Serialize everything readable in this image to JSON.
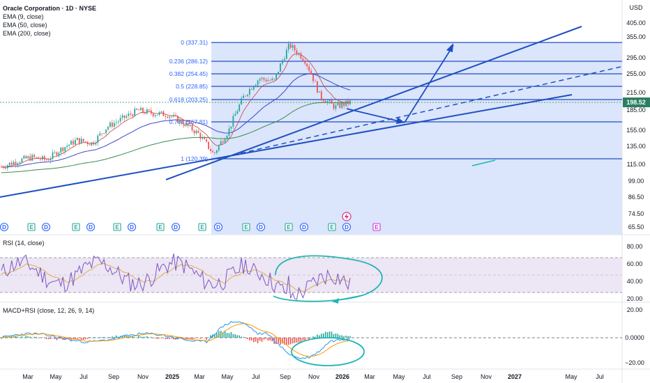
{
  "header": {
    "symbol_title": "Oracle Corporation · 1D · NYSE",
    "indicators": [
      "EMA (9, close)",
      "EMA (50, close)",
      "EMA (200, close)"
    ],
    "currency": "USD"
  },
  "price_axis": {
    "ticks": [
      "405.00",
      "355.00",
      "295.00",
      "255.00",
      "215.00",
      "185.00",
      "155.00",
      "135.00",
      "115.00",
      "99.00",
      "86.50",
      "74.50",
      "65.50"
    ],
    "last_price": "198.52"
  },
  "fib_levels": [
    {
      "label": "0 (337.31)"
    },
    {
      "label": "0.236 (286.12)"
    },
    {
      "label": "0.382 (254.45)"
    },
    {
      "label": "0.5 (228.85)"
    },
    {
      "label": "0.618 (203.25)"
    },
    {
      "label": "0.786 (167.81)"
    },
    {
      "label": "1 (120.39)"
    }
  ],
  "rsi": {
    "label": "RSI (14, close)",
    "ticks": [
      "80.00",
      "60.00",
      "40.00",
      "20.00"
    ]
  },
  "macd": {
    "label": "MACD+RSI (close, 12, 26, 9, 14)",
    "ticks": [
      "20.00",
      "0.0000",
      "−20.00"
    ]
  },
  "time_axis": [
    "Mar",
    "May",
    "Jul",
    "Sep",
    "Nov",
    "2025",
    "Mar",
    "May",
    "Jul",
    "Sep",
    "Nov",
    "2026",
    "Mar",
    "May",
    "Jul",
    "Sep",
    "Nov",
    "2027",
    "May",
    "Jul"
  ],
  "events": [
    "D",
    "E",
    "D",
    "E",
    "D",
    "E",
    "D",
    "E",
    "D",
    "E",
    "D",
    "E",
    "D",
    "E",
    "D",
    "E",
    "D",
    "E"
  ],
  "chart_data": {
    "type": "line",
    "title": "Oracle Corporation · 1D · NYSE",
    "xlabel": "",
    "ylabel": "USD",
    "x": [
      "2024-02",
      "2024-03",
      "2024-04",
      "2024-05",
      "2024-06",
      "2024-07",
      "2024-08",
      "2024-09",
      "2024-10",
      "2024-11",
      "2024-12",
      "2025-01",
      "2025-02",
      "2025-03",
      "2025-04",
      "2025-05",
      "2025-06",
      "2025-07",
      "2025-08",
      "2025-09",
      "2025-10",
      "2025-11",
      "2025-12",
      "2026-01"
    ],
    "series": [
      {
        "values": [
          112,
          118,
          122,
          119,
          132,
          142,
          138,
          160,
          172,
          185,
          180,
          178,
          165,
          150,
          125,
          155,
          210,
          245,
          240,
          330,
          290,
          210,
          190,
          198.52
        ]
      }
    ],
    "ylim": [
      65.5,
      405
    ],
    "y_scale": "log"
  }
}
